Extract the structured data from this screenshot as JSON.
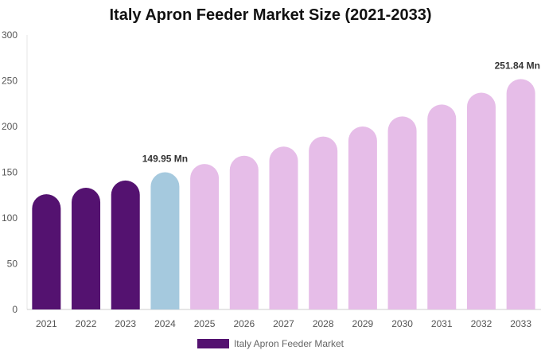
{
  "chart_data": {
    "type": "bar",
    "title": "Italy Apron Feeder Market Size (2021-2033)",
    "categories": [
      "2021",
      "2022",
      "2023",
      "2024",
      "2025",
      "2026",
      "2027",
      "2028",
      "2029",
      "2030",
      "2031",
      "2032",
      "2033"
    ],
    "series": [
      {
        "name": "Italy Apron Feeder Market",
        "values": [
          126,
          133,
          141,
          149.95,
          159,
          168,
          178,
          189,
          200,
          211,
          224,
          237,
          251.84
        ]
      }
    ],
    "ylim": [
      0,
      300
    ],
    "yticks": [
      0,
      50,
      100,
      150,
      200,
      250,
      300
    ],
    "data_labels": [
      {
        "index": 3,
        "text": "149.95 Mn"
      },
      {
        "index": 12,
        "text": "251.84 Mn"
      }
    ],
    "bar_colors": {
      "historical": "#541270",
      "current": "#a5c9de",
      "forecast": "#e6bde8"
    },
    "legend_position": "bottom-center",
    "grid": false
  }
}
